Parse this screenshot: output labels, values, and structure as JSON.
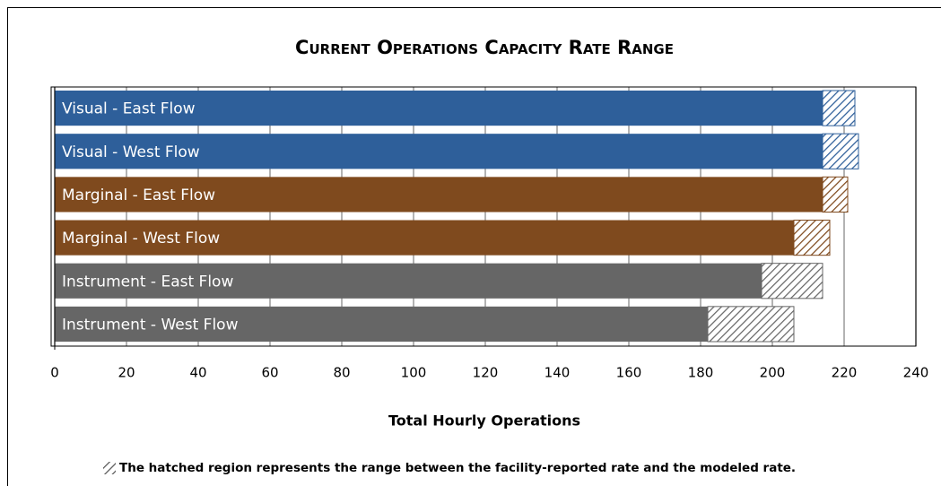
{
  "chart_data": {
    "type": "bar",
    "orientation": "horizontal",
    "stacked": true,
    "title": "Current Operations Capacity Rate Range",
    "x_label": "Total Hourly Operations",
    "note": "The hatched region represents the range between the facility-reported rate and the modeled rate.",
    "categories": [
      "Visual - East Flow",
      "Visual - West Flow",
      "Marginal - East Flow",
      "Marginal - West Flow",
      "Instrument - East Flow",
      "Instrument - West Flow"
    ],
    "colors": [
      "#2e5f9a",
      "#2e5f9a",
      "#7f4a1e",
      "#7f4a1e",
      "#666666",
      "#666666"
    ],
    "series": [
      {
        "values": [
          214,
          214,
          214,
          206,
          197,
          182
        ],
        "hatch": false
      },
      {
        "values": [
          9,
          10,
          7,
          10,
          17,
          24
        ],
        "hatch": true
      }
    ],
    "xlim": [
      0,
      240
    ],
    "xticks": [
      0,
      20,
      40,
      60,
      80,
      100,
      120,
      140,
      160,
      180,
      200,
      220,
      240
    ],
    "grid": true
  }
}
